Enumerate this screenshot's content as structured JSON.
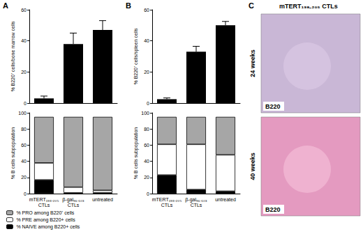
{
  "chart_data": [
    {
      "type": "bar",
      "y_label": "% B220⁺ cells/bone marrow cells",
      "categories": [
        "mTERT₁₉₈₋₂₀₅\nCTLs",
        "β-gal₉₆₋₁₀₃\nCTLs",
        "untreated"
      ],
      "values": [
        3,
        38,
        47
      ],
      "errors": [
        1.5,
        7,
        6
      ],
      "color": "#000000",
      "ylim": [
        0,
        60
      ],
      "yticks": [
        0,
        20,
        40,
        60
      ],
      "grid": false,
      "tick_labels": "y"
    },
    {
      "type": "bar",
      "y_label": "% B cells subpopulation",
      "categories": [
        "mTERT₁₉₈₋₂₀₅\nCTLs",
        "β-gal₉₆₋₁₀₃\nCTLs",
        "untreated"
      ],
      "series": [
        {
          "name": "% NAIVE among B220+ cells",
          "color": "#000000",
          "values": [
            17,
            1,
            1
          ]
        },
        {
          "name": "% PRE among B220+ cells",
          "color": "#ffffff",
          "values": [
            21,
            7,
            3
          ]
        },
        {
          "name": "% PRO among B220⁺ cells",
          "color": "#a6a6a6",
          "values": [
            57,
            87,
            91
          ]
        }
      ],
      "ylim": [
        0,
        100
      ],
      "yticks": [
        0,
        20,
        40,
        60,
        80,
        100
      ],
      "grid": false,
      "stacked": true,
      "legend": "bottom-left"
    },
    {
      "type": "bar",
      "y_label": "% B220⁺ cells/spleen cells",
      "categories": [
        "mTERT₁₉₈₋₂₀₅\nCTLs",
        "β-gal₉₆₋₁₀₃\nCTLs",
        "untreated"
      ],
      "values": [
        2.5,
        33,
        50
      ],
      "errors": [
        0.8,
        3.5,
        2.5
      ],
      "color": "#000000",
      "ylim": [
        0,
        60
      ],
      "yticks": [
        0,
        20,
        40,
        60
      ],
      "grid": false,
      "tick_labels": "y"
    },
    {
      "type": "bar",
      "y_label": "% B cells subpopulation",
      "categories": [
        "mTERT₁₉₈₋₂₀₅\nCTLs",
        "β-gal₉₆₋₁₀₃\nCTLs",
        "untreated"
      ],
      "series": [
        {
          "name": "% NAIVE among B220+ cells",
          "color": "#000000",
          "values": [
            23,
            5,
            3
          ]
        },
        {
          "name": "% PRE among B220+ cells",
          "color": "#ffffff",
          "values": [
            38,
            56,
            45
          ]
        },
        {
          "name": "% PRO among B220⁺ cells",
          "color": "#a6a6a6",
          "values": [
            34,
            34,
            47
          ]
        }
      ],
      "ylim": [
        0,
        100
      ],
      "yticks": [
        0,
        20,
        40,
        60,
        80,
        100
      ],
      "grid": false,
      "stacked": true
    }
  ],
  "panel_labels": [
    "A",
    "B",
    "C"
  ],
  "image_panel": {
    "title": "mTERT₁₉₈₋₂₀₅ CTLs",
    "images": [
      {
        "label": "24 weeks",
        "stain": "B220"
      },
      {
        "label": "40 weeks",
        "stain": "B220"
      }
    ]
  }
}
